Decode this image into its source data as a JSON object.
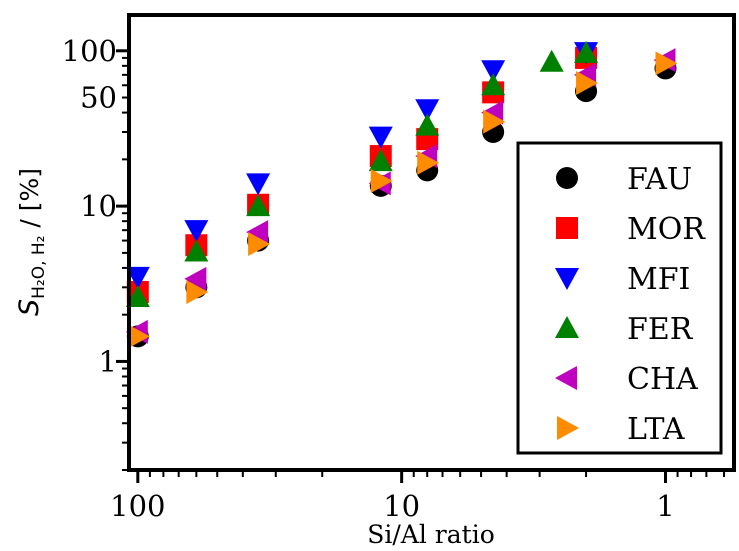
{
  "chart_data": {
    "type": "scatter",
    "title": "",
    "xlabel": "Si/Al ratio",
    "ylabel": "S",
    "ylabel_sub": "H₂O, H₂",
    "ylabel_unit": " / [%]",
    "x_scale": "log",
    "x_reversed": true,
    "y_scale": "log",
    "xlim": [
      108,
      0.55
    ],
    "ylim": [
      0.2,
      170
    ],
    "xticks": [
      {
        "value": 100,
        "label": "100"
      },
      {
        "value": 10,
        "label": "10"
      },
      {
        "value": 1,
        "label": "1"
      }
    ],
    "yticks": [
      {
        "value": 1,
        "label": "1"
      },
      {
        "value": 10,
        "label": "10"
      },
      {
        "value": 50,
        "label": "50"
      },
      {
        "value": 100,
        "label": "100"
      }
    ],
    "grid": false,
    "legend_position": "right",
    "series": [
      {
        "name": "FAU",
        "marker": "circle",
        "color": "#000000",
        "points": [
          [
            100,
            1.45
          ],
          [
            60,
            3.0
          ],
          [
            35,
            6.0
          ],
          [
            12,
            13.5
          ],
          [
            8,
            17.0
          ],
          [
            4.5,
            30.0
          ],
          [
            2,
            55.0
          ],
          [
            1,
            77.0
          ]
        ]
      },
      {
        "name": "MOR",
        "marker": "square",
        "color": "#ff0000",
        "points": [
          [
            100,
            2.8
          ],
          [
            60,
            5.6
          ],
          [
            35,
            10.2
          ],
          [
            12,
            21.0
          ],
          [
            8,
            27.0
          ],
          [
            4.5,
            54.0
          ],
          [
            2,
            90.0
          ]
        ]
      },
      {
        "name": "MFI",
        "marker": "triangle-down",
        "color": "#0000ff",
        "points": [
          [
            100,
            3.5
          ],
          [
            60,
            7.0
          ],
          [
            35,
            14.0
          ],
          [
            12,
            28.0
          ],
          [
            8,
            42.0
          ],
          [
            4.5,
            75.0
          ],
          [
            2,
            98.0
          ]
        ]
      },
      {
        "name": "FER",
        "marker": "triangle-up",
        "color": "#008000",
        "points": [
          [
            100,
            2.6
          ],
          [
            60,
            5.1
          ],
          [
            35,
            10.0
          ],
          [
            12,
            19.5
          ],
          [
            8,
            33.0
          ],
          [
            4.5,
            60.0
          ],
          [
            2.7,
            85.0
          ],
          [
            2,
            97.0
          ]
        ]
      },
      {
        "name": "CHA",
        "marker": "triangle-left",
        "color": "#bf00bf",
        "points": [
          [
            100,
            1.55
          ],
          [
            60,
            3.4
          ],
          [
            35,
            6.8
          ],
          [
            12,
            14.0
          ],
          [
            8,
            21.0
          ],
          [
            4.5,
            40.0
          ],
          [
            2,
            70.0
          ],
          [
            1,
            87.0
          ]
        ]
      },
      {
        "name": "LTA",
        "marker": "triangle-right",
        "color": "#ff8c00",
        "points": [
          [
            100,
            1.45
          ],
          [
            60,
            2.8
          ],
          [
            35,
            5.7
          ],
          [
            12,
            14.5
          ],
          [
            8,
            19.0
          ],
          [
            4.5,
            35.0
          ],
          [
            2,
            62.0
          ],
          [
            1,
            83.0
          ]
        ]
      }
    ]
  }
}
